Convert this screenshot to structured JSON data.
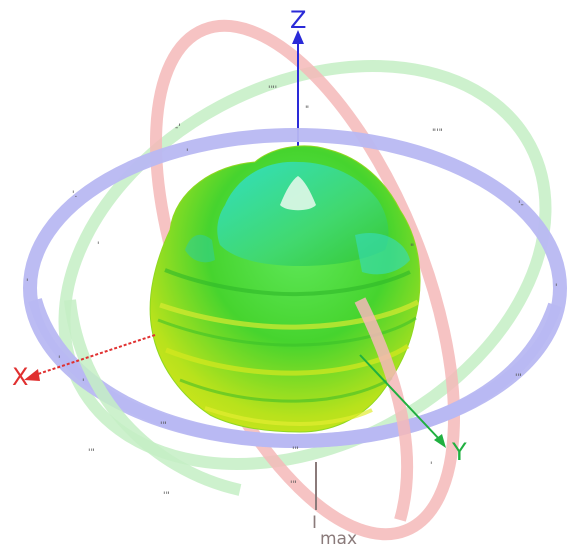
{
  "axes": {
    "z_label": "Z",
    "x_label": "X",
    "y_label": "Y",
    "z_color": "#2a2ad8",
    "x_color": "#e03030",
    "y_color": "#20b040"
  },
  "max_marker": {
    "prefix": "I",
    "label": "max",
    "color": "#8a7a7a"
  },
  "rings": {
    "azimuth_color": "#b8b8f2",
    "elevation_xz_color": "#f5b8b8",
    "elevation_yz_color": "#c4efc4"
  },
  "pattern": {
    "colors": [
      "#c8e61a",
      "#44dc2a",
      "#36e4a0",
      "#20d8e0"
    ]
  }
}
